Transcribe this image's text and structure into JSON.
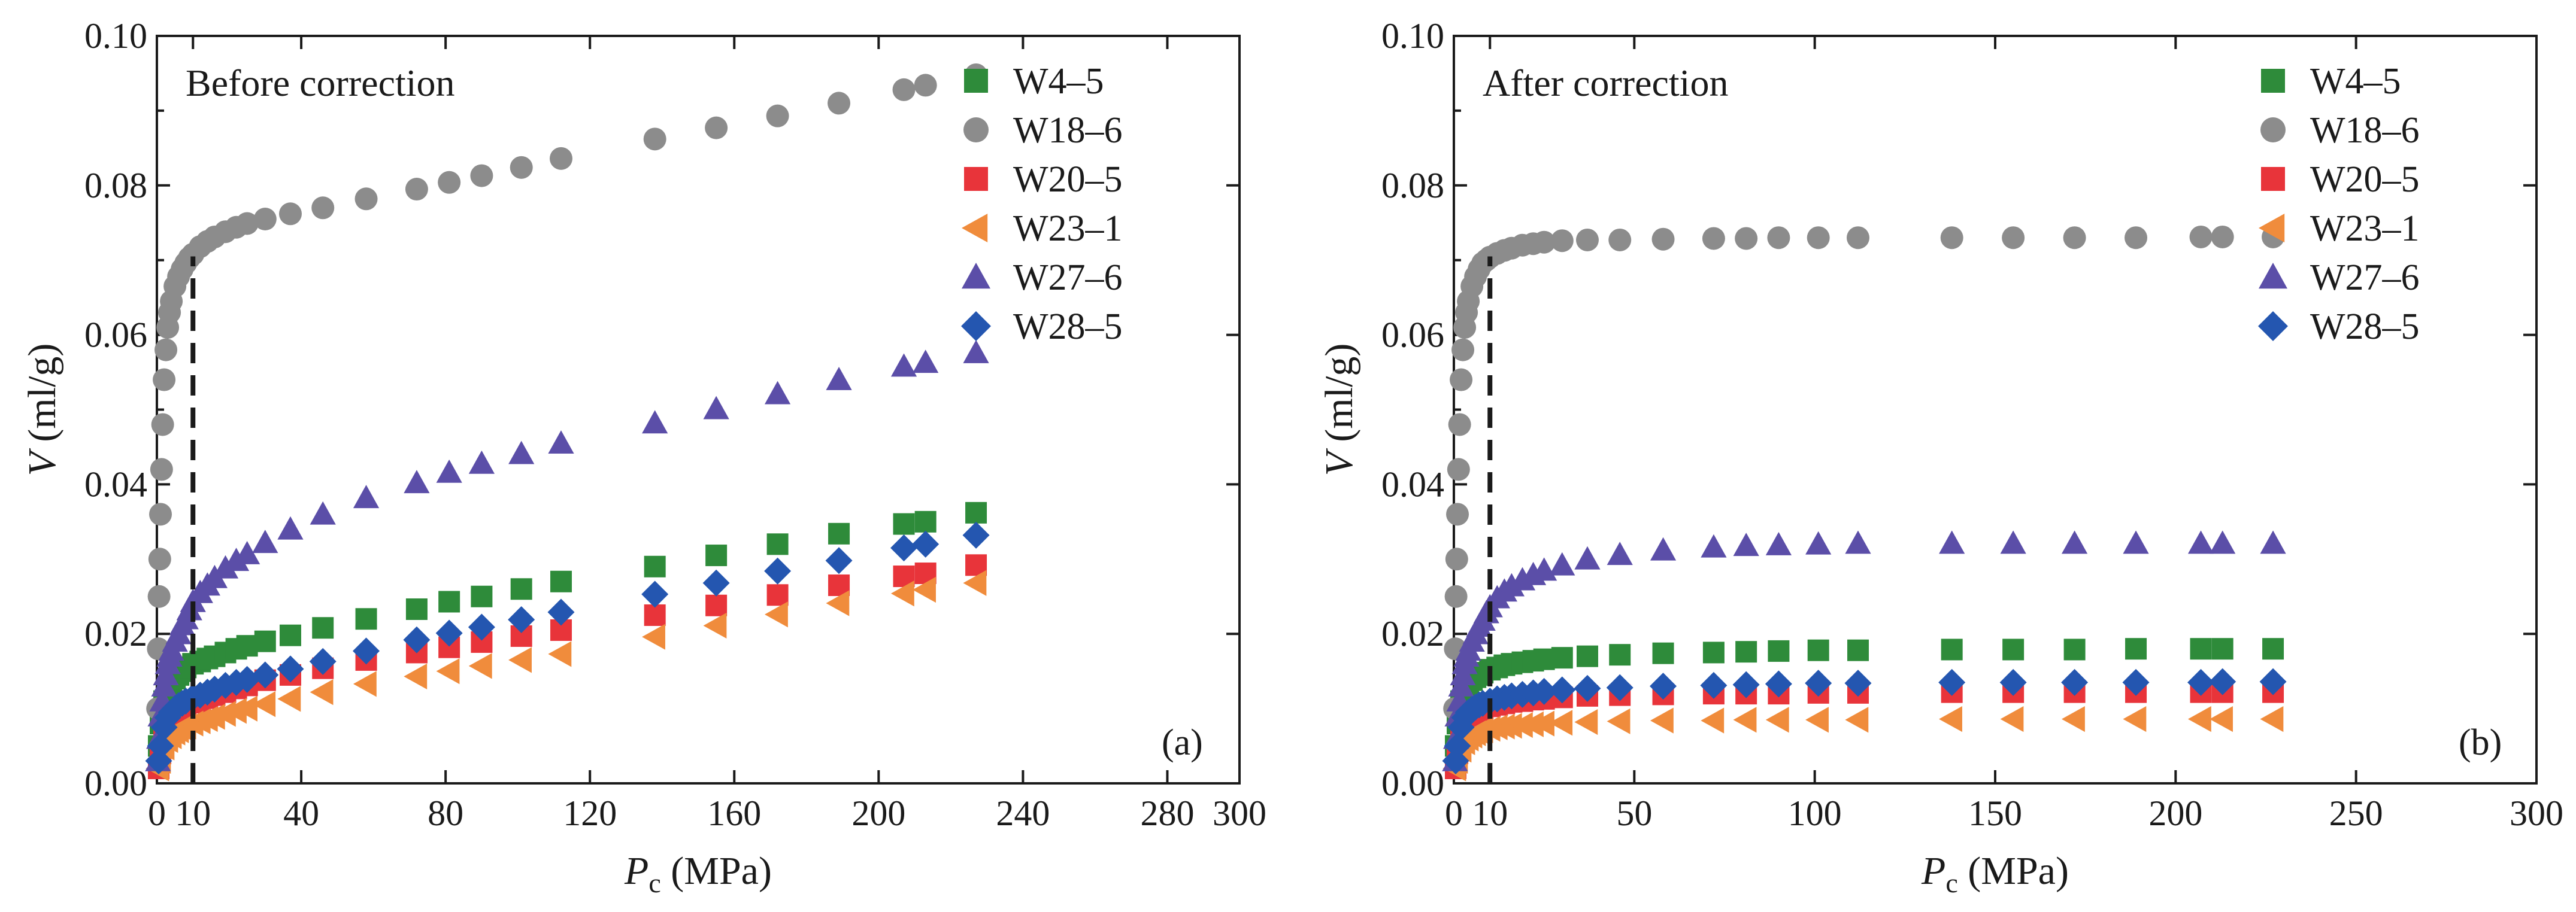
{
  "chart_data": [
    {
      "type": "scatter",
      "panel": "a",
      "title": "Before correction",
      "panel_tag": "(a)",
      "xlabel": "P",
      "xlabel_sub": "c",
      "xlabel_unit": " (MPa)",
      "ylabel": "V",
      "ylabel_unit": " (ml/g)",
      "xlim": [
        0,
        300
      ],
      "ylim": [
        0,
        0.1
      ],
      "x_ticks": [
        0,
        10,
        40,
        80,
        120,
        160,
        200,
        240,
        280,
        300
      ],
      "x_tick_labels": [
        "0",
        "10",
        "40",
        "80",
        "120",
        "160",
        "200",
        "240",
        "280",
        "300"
      ],
      "y_ticks": [
        0,
        0.02,
        0.04,
        0.06,
        0.08,
        0.1
      ],
      "y_tick_labels": [
        "0.00",
        "0.02",
        "0.04",
        "0.06",
        "0.08",
        "0.10"
      ],
      "reference_line_x": 10,
      "legend_position": "top-right",
      "series": [
        {
          "name": "W4–5",
          "marker": "square",
          "color": "#2e8b3a",
          "x": [
            0.5,
            1,
            2,
            3,
            4,
            5,
            6,
            7,
            8,
            10,
            12,
            14,
            16,
            19,
            22,
            25,
            30,
            37,
            46,
            58,
            72,
            81,
            90,
            101,
            112,
            138,
            155,
            172,
            189,
            207,
            213,
            227
          ],
          "y": [
            0.005,
            0.008,
            0.011,
            0.0125,
            0.0135,
            0.014,
            0.0145,
            0.015,
            0.0155,
            0.016,
            0.0163,
            0.0167,
            0.017,
            0.0175,
            0.018,
            0.0184,
            0.019,
            0.0198,
            0.0208,
            0.022,
            0.0233,
            0.0243,
            0.025,
            0.026,
            0.027,
            0.029,
            0.0305,
            0.032,
            0.0334,
            0.0347,
            0.035,
            0.0362
          ]
        },
        {
          "name": "W18–6",
          "marker": "circle",
          "color": "#8c8c8c",
          "x": [
            0.2,
            0.4,
            0.6,
            0.8,
            1,
            1.3,
            1.6,
            2,
            2.5,
            3,
            3.5,
            4,
            5,
            6,
            7,
            8,
            9,
            10,
            12,
            14,
            16,
            19,
            22,
            25,
            30,
            37,
            46,
            58,
            72,
            81,
            90,
            101,
            112,
            138,
            155,
            172,
            189,
            207,
            213,
            227
          ],
          "y": [
            0.01,
            0.018,
            0.025,
            0.03,
            0.036,
            0.042,
            0.048,
            0.054,
            0.058,
            0.061,
            0.063,
            0.0645,
            0.0665,
            0.0678,
            0.0688,
            0.0696,
            0.0703,
            0.0708,
            0.0718,
            0.0725,
            0.0731,
            0.0738,
            0.0744,
            0.0749,
            0.0755,
            0.0762,
            0.077,
            0.0782,
            0.0795,
            0.0804,
            0.0813,
            0.0824,
            0.0836,
            0.0862,
            0.0877,
            0.0893,
            0.091,
            0.0928,
            0.0934,
            0.0948
          ]
        },
        {
          "name": "W20–5",
          "marker": "square",
          "color": "#e8343a",
          "x": [
            0.5,
            1,
            2,
            3,
            4,
            5,
            6,
            7,
            8,
            10,
            12,
            14,
            16,
            19,
            22,
            25,
            30,
            37,
            46,
            58,
            72,
            81,
            90,
            101,
            112,
            138,
            155,
            172,
            189,
            207,
            213,
            227
          ],
          "y": [
            0.002,
            0.004,
            0.0065,
            0.0078,
            0.0085,
            0.009,
            0.0095,
            0.0098,
            0.0102,
            0.0108,
            0.011,
            0.0114,
            0.0118,
            0.0122,
            0.0127,
            0.0131,
            0.0138,
            0.0145,
            0.0154,
            0.0165,
            0.0175,
            0.0182,
            0.0189,
            0.0197,
            0.0205,
            0.0225,
            0.0238,
            0.0252,
            0.0265,
            0.0277,
            0.0281,
            0.0292
          ]
        },
        {
          "name": "W23–1",
          "marker": "triangle-left",
          "color": "#f08c3c",
          "x": [
            0.5,
            1,
            2,
            3,
            4,
            5,
            6,
            7,
            8,
            10,
            12,
            14,
            16,
            19,
            22,
            25,
            30,
            37,
            46,
            58,
            72,
            81,
            90,
            101,
            112,
            138,
            155,
            172,
            189,
            207,
            213,
            227
          ],
          "y": [
            0.002,
            0.003,
            0.0048,
            0.0058,
            0.0063,
            0.0068,
            0.0071,
            0.0074,
            0.0076,
            0.008,
            0.0083,
            0.0086,
            0.0089,
            0.0093,
            0.0097,
            0.01,
            0.0106,
            0.0113,
            0.0122,
            0.0133,
            0.0143,
            0.015,
            0.0157,
            0.0165,
            0.0173,
            0.0196,
            0.0211,
            0.0226,
            0.0241,
            0.0254,
            0.0259,
            0.0268
          ]
        },
        {
          "name": "W27–6",
          "marker": "triangle-up",
          "color": "#5b4ea8",
          "x": [
            0.3,
            0.6,
            1,
            1.5,
            2,
            2.5,
            3,
            3.5,
            4,
            5,
            6,
            7,
            8,
            9,
            10,
            12,
            14,
            16,
            19,
            22,
            25,
            30,
            37,
            46,
            58,
            72,
            81,
            90,
            101,
            112,
            138,
            155,
            172,
            189,
            207,
            213,
            227
          ],
          "y": [
            0.003,
            0.006,
            0.009,
            0.011,
            0.013,
            0.0145,
            0.016,
            0.017,
            0.0178,
            0.019,
            0.02,
            0.0212,
            0.022,
            0.0232,
            0.0243,
            0.0255,
            0.0265,
            0.0275,
            0.0288,
            0.0298,
            0.0307,
            0.0322,
            0.034,
            0.036,
            0.0382,
            0.0402,
            0.0416,
            0.0428,
            0.0441,
            0.0455,
            0.0482,
            0.0501,
            0.0521,
            0.054,
            0.0558,
            0.0563,
            0.0576
          ]
        },
        {
          "name": "W28–5",
          "marker": "diamond",
          "color": "#2456b0",
          "x": [
            0.5,
            1,
            2,
            3,
            4,
            5,
            6,
            7,
            8,
            10,
            12,
            14,
            16,
            19,
            22,
            25,
            30,
            37,
            46,
            58,
            72,
            81,
            90,
            101,
            112,
            138,
            155,
            172,
            189,
            207,
            213,
            227
          ],
          "y": [
            0.003,
            0.005,
            0.0075,
            0.0088,
            0.0095,
            0.01,
            0.0104,
            0.0107,
            0.011,
            0.0115,
            0.0118,
            0.0122,
            0.0126,
            0.0131,
            0.0135,
            0.0139,
            0.0145,
            0.0153,
            0.0163,
            0.0177,
            0.0192,
            0.0201,
            0.0209,
            0.0219,
            0.0229,
            0.0253,
            0.0268,
            0.0284,
            0.0298,
            0.0315,
            0.032,
            0.0332
          ]
        }
      ]
    },
    {
      "type": "scatter",
      "panel": "b",
      "title": "After correction",
      "panel_tag": "(b)",
      "xlabel": "P",
      "xlabel_sub": "c",
      "xlabel_unit": " (MPa)",
      "ylabel": "V",
      "ylabel_unit": " (ml/g)",
      "xlim": [
        0,
        300
      ],
      "ylim": [
        0,
        0.1
      ],
      "x_ticks": [
        0,
        10,
        50,
        100,
        150,
        200,
        250,
        300
      ],
      "x_tick_labels": [
        "0",
        "10",
        "50",
        "100",
        "150",
        "200",
        "250",
        "300"
      ],
      "y_ticks": [
        0,
        0.02,
        0.04,
        0.06,
        0.08,
        0.1
      ],
      "y_tick_labels": [
        "0.00",
        "0.02",
        "0.04",
        "0.06",
        "0.08",
        "0.10"
      ],
      "reference_line_x": 10,
      "legend_position": "top-right",
      "series": [
        {
          "name": "W4–5",
          "marker": "square",
          "color": "#2e8b3a",
          "x": [
            0.5,
            1,
            2,
            3,
            4,
            5,
            6,
            7,
            8,
            10,
            12,
            14,
            16,
            19,
            22,
            25,
            30,
            37,
            46,
            58,
            72,
            81,
            90,
            101,
            112,
            138,
            155,
            172,
            189,
            207,
            213,
            227
          ],
          "y": [
            0.005,
            0.008,
            0.011,
            0.0125,
            0.0133,
            0.0138,
            0.0142,
            0.0145,
            0.0148,
            0.0152,
            0.0155,
            0.0158,
            0.016,
            0.0162,
            0.0164,
            0.0166,
            0.0168,
            0.017,
            0.0172,
            0.0174,
            0.0175,
            0.0176,
            0.0177,
            0.0178,
            0.0178,
            0.0179,
            0.0179,
            0.0179,
            0.018,
            0.018,
            0.018,
            0.018
          ]
        },
        {
          "name": "W18–6",
          "marker": "circle",
          "color": "#8c8c8c",
          "x": [
            0.2,
            0.4,
            0.6,
            0.8,
            1,
            1.3,
            1.6,
            2,
            2.5,
            3,
            3.5,
            4,
            5,
            6,
            7,
            8,
            9,
            10,
            12,
            14,
            16,
            19,
            22,
            25,
            30,
            37,
            46,
            58,
            72,
            81,
            90,
            101,
            112,
            138,
            155,
            172,
            189,
            207,
            213,
            227
          ],
          "y": [
            0.01,
            0.018,
            0.025,
            0.03,
            0.036,
            0.042,
            0.048,
            0.054,
            0.058,
            0.061,
            0.063,
            0.0645,
            0.0665,
            0.0678,
            0.0688,
            0.0696,
            0.07,
            0.0704,
            0.0709,
            0.0713,
            0.0716,
            0.072,
            0.0722,
            0.0724,
            0.0726,
            0.0727,
            0.0727,
            0.0728,
            0.0729,
            0.0729,
            0.073,
            0.073,
            0.073,
            0.073,
            0.073,
            0.073,
            0.073,
            0.0731,
            0.0731,
            0.0731
          ]
        },
        {
          "name": "W20–5",
          "marker": "square",
          "color": "#e8343a",
          "x": [
            0.5,
            1,
            2,
            3,
            4,
            5,
            6,
            7,
            8,
            10,
            12,
            14,
            16,
            19,
            22,
            25,
            30,
            37,
            46,
            58,
            72,
            81,
            90,
            101,
            112,
            138,
            155,
            172,
            189,
            207,
            213,
            227
          ],
          "y": [
            0.002,
            0.004,
            0.0065,
            0.0078,
            0.0085,
            0.009,
            0.0094,
            0.0097,
            0.01,
            0.0103,
            0.0105,
            0.0107,
            0.0109,
            0.011,
            0.0112,
            0.0113,
            0.0115,
            0.0117,
            0.0118,
            0.0119,
            0.012,
            0.012,
            0.012,
            0.0121,
            0.0121,
            0.0122,
            0.0122,
            0.0122,
            0.0122,
            0.0122,
            0.0122,
            0.0122
          ]
        },
        {
          "name": "W23–1",
          "marker": "triangle-left",
          "color": "#f08c3c",
          "x": [
            0.5,
            1,
            2,
            3,
            4,
            5,
            6,
            7,
            8,
            10,
            12,
            14,
            16,
            19,
            22,
            25,
            30,
            37,
            46,
            58,
            72,
            81,
            90,
            101,
            112,
            138,
            155,
            172,
            189,
            207,
            213,
            227
          ],
          "y": [
            0.002,
            0.003,
            0.0045,
            0.0055,
            0.006,
            0.0064,
            0.0067,
            0.0069,
            0.0071,
            0.0073,
            0.0075,
            0.0076,
            0.0077,
            0.0078,
            0.0079,
            0.008,
            0.0081,
            0.0082,
            0.0083,
            0.0084,
            0.0084,
            0.0085,
            0.0085,
            0.0085,
            0.0085,
            0.0086,
            0.0086,
            0.0086,
            0.0086,
            0.0086,
            0.0086,
            0.0086
          ]
        },
        {
          "name": "W27–6",
          "marker": "triangle-up",
          "color": "#5b4ea8",
          "x": [
            0.3,
            0.6,
            1,
            1.5,
            2,
            2.5,
            3,
            3.5,
            4,
            5,
            6,
            7,
            8,
            9,
            10,
            12,
            14,
            16,
            19,
            22,
            25,
            30,
            37,
            46,
            58,
            72,
            81,
            90,
            101,
            112,
            138,
            155,
            172,
            189,
            207,
            213,
            227
          ],
          "y": [
            0.003,
            0.006,
            0.009,
            0.011,
            0.013,
            0.0145,
            0.016,
            0.017,
            0.0178,
            0.019,
            0.02,
            0.021,
            0.0218,
            0.0228,
            0.0236,
            0.0248,
            0.0257,
            0.0264,
            0.0272,
            0.0279,
            0.0285,
            0.0292,
            0.03,
            0.0306,
            0.0312,
            0.0316,
            0.0318,
            0.0319,
            0.032,
            0.0321,
            0.0321,
            0.0321,
            0.0321,
            0.0321,
            0.0321,
            0.0321,
            0.0321
          ]
        },
        {
          "name": "W28–5",
          "marker": "diamond",
          "color": "#2456b0",
          "x": [
            0.5,
            1,
            2,
            3,
            4,
            5,
            6,
            7,
            8,
            10,
            12,
            14,
            16,
            19,
            22,
            25,
            30,
            37,
            46,
            58,
            72,
            81,
            90,
            101,
            112,
            138,
            155,
            172,
            189,
            207,
            213,
            227
          ],
          "y": [
            0.003,
            0.005,
            0.0075,
            0.0088,
            0.0095,
            0.0099,
            0.0102,
            0.0105,
            0.0107,
            0.011,
            0.0113,
            0.0115,
            0.0117,
            0.0119,
            0.0121,
            0.0123,
            0.0125,
            0.0127,
            0.0128,
            0.013,
            0.0131,
            0.0132,
            0.0133,
            0.0134,
            0.0134,
            0.0135,
            0.0135,
            0.0135,
            0.0135,
            0.0135,
            0.0136,
            0.0136
          ]
        }
      ]
    }
  ]
}
